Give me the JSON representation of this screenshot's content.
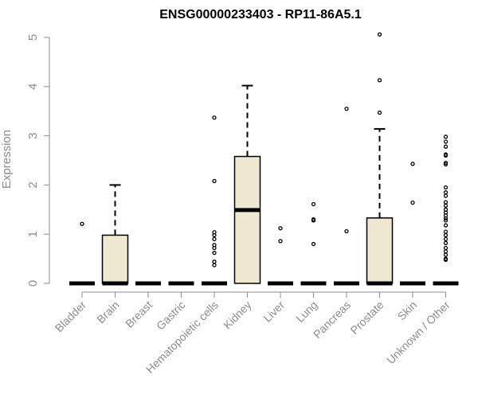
{
  "chart_data": {
    "type": "box",
    "title": "ENSG00000233403 - RP11-86A5.1",
    "xlabel": "",
    "ylabel": "Expression",
    "ylim": [
      0,
      5
    ],
    "yticks": [
      0,
      1,
      2,
      3,
      4,
      5
    ],
    "box_fill": "#efe8d0",
    "categories": [
      "Bladder",
      "Brain",
      "Breast",
      "Gastric",
      "Hematopoietic cells",
      "Kidney",
      "Liver",
      "Lung",
      "Pancreas",
      "Prostate",
      "Skin",
      "Unknown / Other"
    ],
    "boxes": [
      {
        "category": "Bladder",
        "q1": 0,
        "median": 0,
        "q3": 0,
        "whisker_low": 0,
        "whisker_high": 0,
        "outliers": [
          1.21
        ]
      },
      {
        "category": "Brain",
        "q1": 0,
        "median": 0,
        "q3": 0.98,
        "whisker_low": 0,
        "whisker_high": 2.0,
        "outliers": []
      },
      {
        "category": "Breast",
        "q1": 0,
        "median": 0,
        "q3": 0,
        "whisker_low": 0,
        "whisker_high": 0,
        "outliers": []
      },
      {
        "category": "Gastric",
        "q1": 0,
        "median": 0,
        "q3": 0,
        "whisker_low": 0,
        "whisker_high": 0,
        "outliers": []
      },
      {
        "category": "Hematopoietic cells",
        "q1": 0,
        "median": 0,
        "q3": 0,
        "whisker_low": 0,
        "whisker_high": 0,
        "outliers": [
          3.37,
          2.08,
          1.04,
          0.98,
          0.9,
          0.78,
          0.72,
          0.62,
          0.44,
          0.37
        ]
      },
      {
        "category": "Kidney",
        "q1": 0,
        "median": 1.49,
        "q3": 2.58,
        "whisker_low": 0,
        "whisker_high": 4.02,
        "outliers": []
      },
      {
        "category": "Liver",
        "q1": 0,
        "median": 0,
        "q3": 0,
        "whisker_low": 0,
        "whisker_high": 0,
        "outliers": [
          1.12,
          0.86
        ]
      },
      {
        "category": "Lung",
        "q1": 0,
        "median": 0,
        "q3": 0,
        "whisker_low": 0,
        "whisker_high": 0,
        "outliers": [
          1.61,
          1.3,
          1.28,
          0.8
        ]
      },
      {
        "category": "Pancreas",
        "q1": 0,
        "median": 0,
        "q3": 0,
        "whisker_low": 0,
        "whisker_high": 0,
        "outliers": [
          3.55,
          1.06
        ]
      },
      {
        "category": "Prostate",
        "q1": 0,
        "median": 0,
        "q3": 1.33,
        "whisker_low": 0,
        "whisker_high": 3.14,
        "outliers": [
          5.06,
          4.13,
          3.47
        ]
      },
      {
        "category": "Skin",
        "q1": 0,
        "median": 0,
        "q3": 0,
        "whisker_low": 0,
        "whisker_high": 0,
        "outliers": [
          2.43,
          1.64
        ]
      },
      {
        "category": "Unknown / Other",
        "q1": 0,
        "median": 0,
        "q3": 0,
        "whisker_low": 0,
        "whisker_high": 0,
        "outliers": [
          2.98,
          2.88,
          2.78,
          2.62,
          2.6,
          2.45,
          2.42,
          1.95,
          1.85,
          1.78,
          1.65,
          1.58,
          1.5,
          1.44,
          1.38,
          1.32,
          1.28,
          1.18,
          1.05,
          0.98,
          0.9,
          0.82,
          0.72,
          0.65,
          0.58,
          0.5,
          0.48
        ]
      }
    ]
  }
}
